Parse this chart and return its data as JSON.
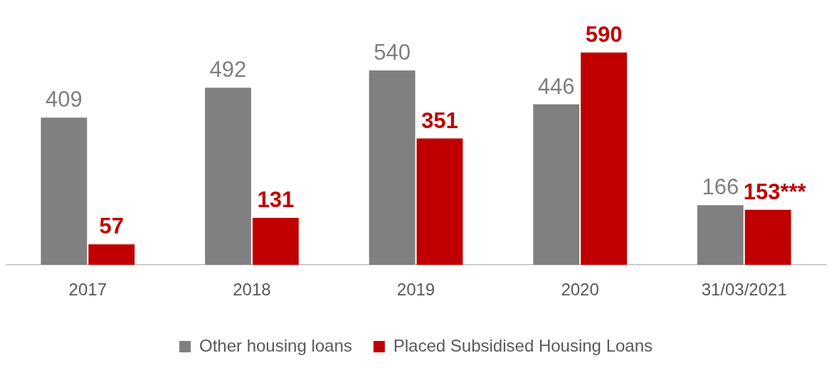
{
  "chart_data": {
    "type": "bar",
    "categories": [
      "2017",
      "2018",
      "2019",
      "2020",
      "31/03/2021"
    ],
    "series": [
      {
        "name": "Other housing loans",
        "color": "#808080",
        "values": [
          409,
          492,
          540,
          446,
          166
        ],
        "value_labels": [
          "409",
          "492",
          "540",
          "446",
          "166"
        ]
      },
      {
        "name": "Placed Subsidised Housing Loans",
        "color": "#c00000",
        "values": [
          57,
          131,
          351,
          590,
          153
        ],
        "value_labels": [
          "57",
          "131",
          "351",
          "590",
          "153***"
        ]
      }
    ],
    "legend": "bottom",
    "grid": false
  }
}
